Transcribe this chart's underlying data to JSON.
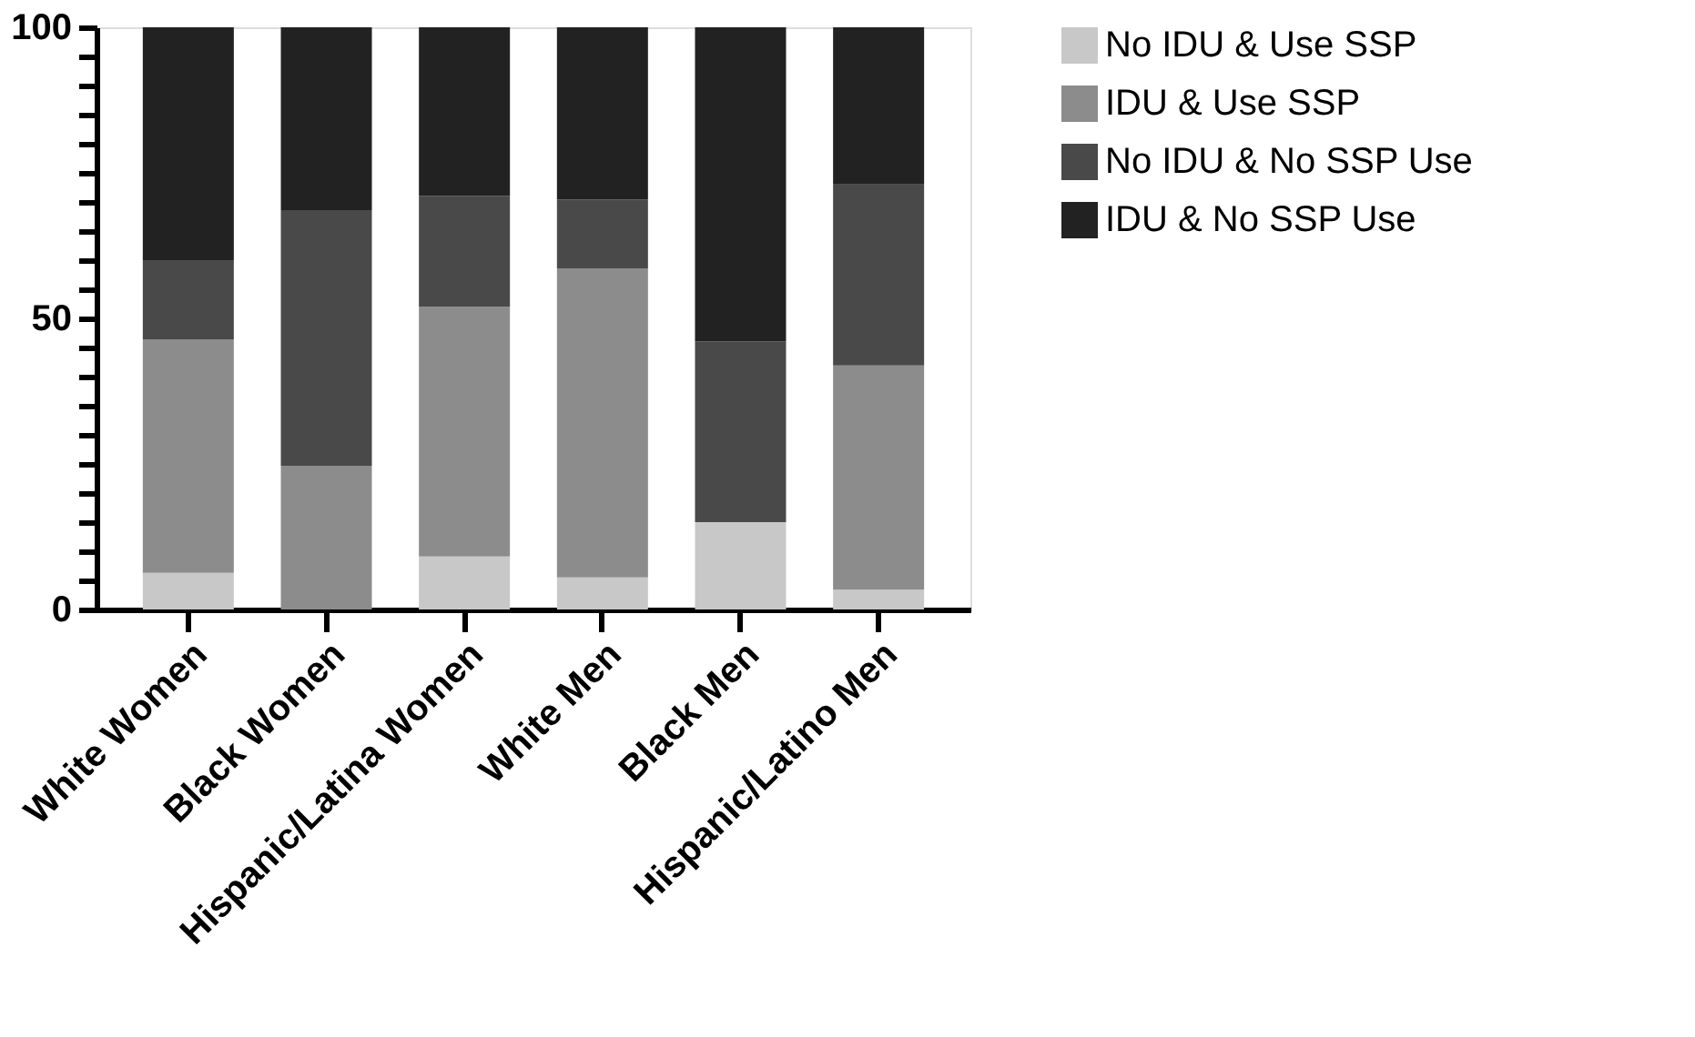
{
  "chart_data": {
    "type": "bar",
    "stacked": true,
    "categories": [
      "White Women",
      "Black Women",
      "Hispanic/Latina Women",
      "White Men",
      "Black Men",
      "Hispanic/Latino Men"
    ],
    "series": [
      {
        "name": "No IDU & Use SSP",
        "color": "#c8c8c8",
        "values": [
          6.3,
          0,
          9.1,
          5.5,
          15.0,
          3.4
        ]
      },
      {
        "name": "IDU & Use SSP",
        "color": "#8c8c8c",
        "values": [
          40.1,
          24.7,
          42.9,
          53.1,
          0,
          38.5
        ]
      },
      {
        "name": "No IDU & No SSP Use",
        "color": "#494949",
        "values": [
          13.5,
          43.9,
          19.0,
          11.8,
          31.0,
          31.1
        ]
      },
      {
        "name": "IDU & No SSP Use",
        "color": "#222222",
        "values": [
          40.1,
          31.4,
          29.0,
          29.6,
          54.0,
          27.0
        ]
      }
    ],
    "ylim": [
      0,
      100
    ],
    "yticks": [
      0,
      {
        "value": 5,
        "label": null
      },
      {
        "value": 10,
        "label": null
      },
      {
        "value": 15,
        "label": null
      },
      {
        "value": 20,
        "label": null
      },
      {
        "value": 25,
        "label": null
      },
      {
        "value": 30,
        "label": null
      },
      {
        "value": 35,
        "label": null
      },
      {
        "value": 40,
        "label": null
      },
      {
        "value": 45,
        "label": null
      },
      50,
      {
        "value": 55,
        "label": null
      },
      {
        "value": 60,
        "label": null
      },
      {
        "value": 65,
        "label": null
      },
      {
        "value": 70,
        "label": null
      },
      {
        "value": 75,
        "label": null
      },
      {
        "value": 80,
        "label": null
      },
      {
        "value": 85,
        "label": null
      },
      {
        "value": 90,
        "label": null
      },
      {
        "value": 95,
        "label": null
      },
      100
    ],
    "grid": false,
    "legend": "right"
  }
}
